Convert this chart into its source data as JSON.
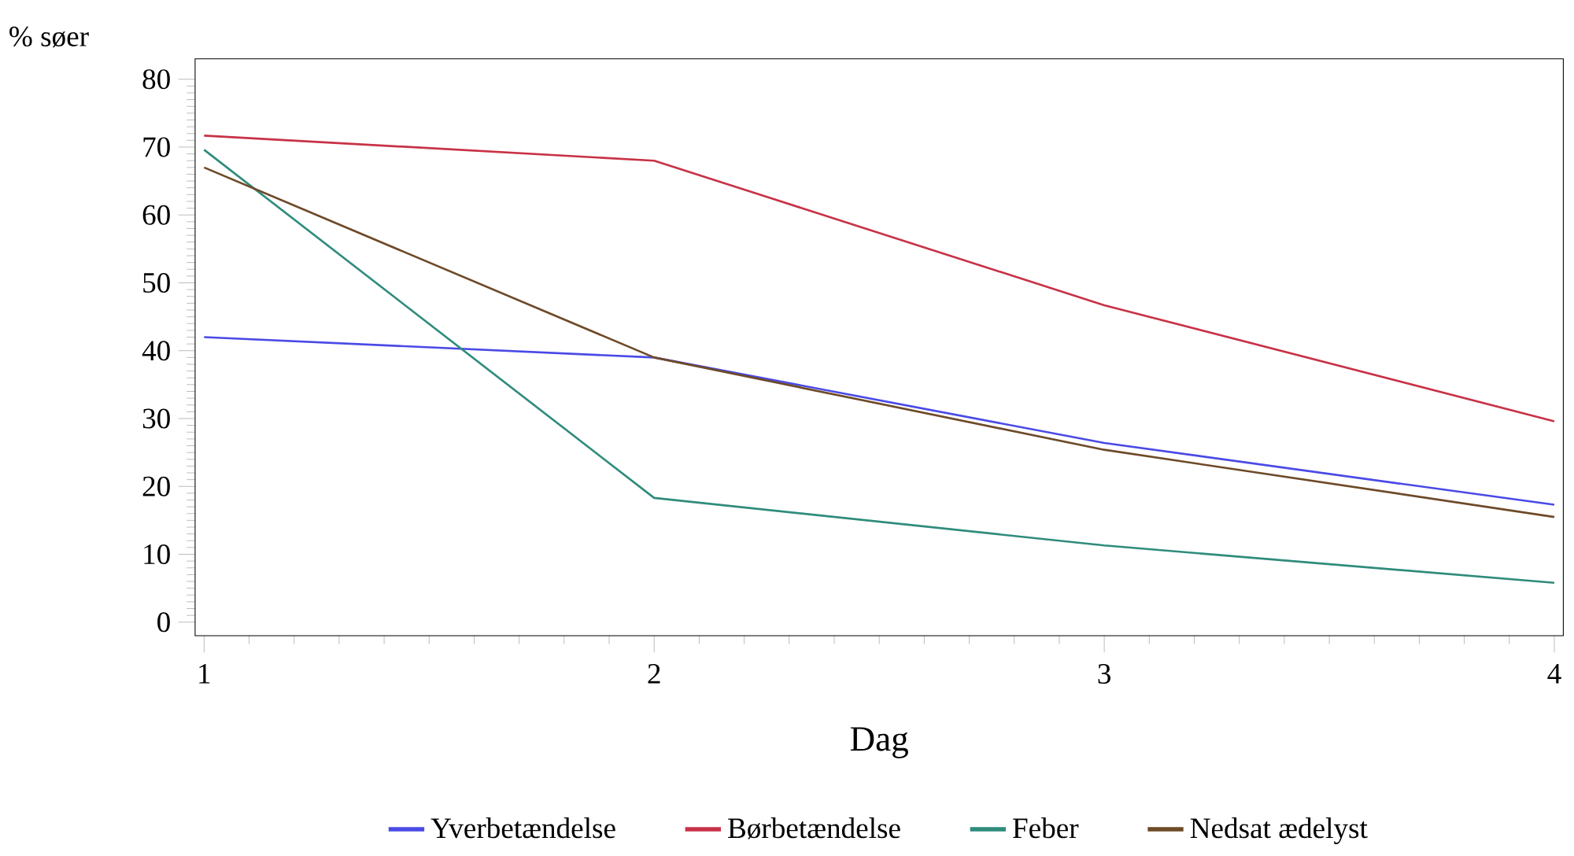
{
  "chart_data": {
    "type": "line",
    "ylabel": "% søer",
    "xlabel": "Dag",
    "x": [
      1,
      2,
      3,
      4
    ],
    "xlim": [
      0.98,
      4.02
    ],
    "xticks": [
      1,
      2,
      3,
      4
    ],
    "ylim": [
      -2,
      83
    ],
    "yticks": [
      0,
      10,
      20,
      30,
      40,
      50,
      60,
      70,
      80
    ],
    "legend": "bottom",
    "grid": false,
    "marker": "none",
    "line_style": "solid",
    "series": [
      {
        "name": "Yverbetændelse",
        "color": "#4a4ae6",
        "values": [
          42,
          39,
          26.4,
          17.3
        ]
      },
      {
        "name": "Børbetændelse",
        "color": "#c83246",
        "values": [
          71.7,
          68,
          46.7,
          29.6
        ]
      },
      {
        "name": "Feber",
        "color": "#2f8c7c",
        "values": [
          69.6,
          18.3,
          11.3,
          5.8
        ]
      },
      {
        "name": "Nedsat ædelyst",
        "color": "#6e4a28",
        "values": [
          67,
          39,
          25.4,
          15.5
        ]
      }
    ]
  }
}
